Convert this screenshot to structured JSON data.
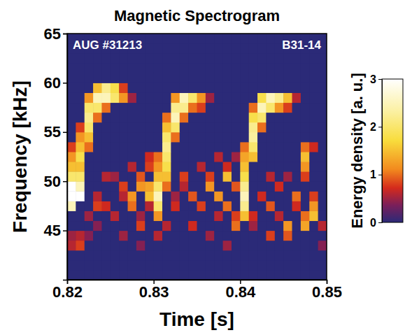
{
  "chart_data": {
    "type": "heatmap",
    "title": "Magnetic Spectrogram",
    "x_label": "Time [s]",
    "y_label": "Frequency [kHz]",
    "annotations": [
      "AUG #31213",
      "B31-14"
    ],
    "xlim": [
      0.82,
      0.85
    ],
    "ylim": [
      40,
      65
    ],
    "xticks": [
      0.82,
      0.83,
      0.84,
      0.85
    ],
    "yticks": [
      45,
      50,
      55,
      60,
      65
    ],
    "colorbar_label": "Energy density [a. u.]",
    "colorbar_range": [
      0,
      3
    ],
    "colorbar_ticks": [
      0,
      1,
      2,
      3
    ],
    "x": [
      0.8205,
      0.8215,
      0.8225,
      0.8235,
      0.8245,
      0.8255,
      0.8265,
      0.8275,
      0.8285,
      0.8295,
      0.8305,
      0.8315,
      0.8325,
      0.8335,
      0.8345,
      0.8355,
      0.8365,
      0.8375,
      0.8385,
      0.8395,
      0.8405,
      0.8415,
      0.8425,
      0.8435,
      0.8445,
      0.8455,
      0.8465,
      0.8475,
      0.8485,
      0.8495
    ],
    "y": [
      40.5,
      41.5,
      42.5,
      43.5,
      44.5,
      45.5,
      46.5,
      47.5,
      48.5,
      49.5,
      50.5,
      51.5,
      52.5,
      53.5,
      54.5,
      55.5,
      56.5,
      57.5,
      58.5,
      59.5,
      60.5,
      61.5,
      62.5,
      63.5,
      64.5
    ],
    "z": [
      [
        0,
        0,
        0,
        0,
        0,
        0,
        0,
        0,
        0,
        0,
        0,
        0,
        0,
        0,
        0,
        0,
        0,
        0,
        0,
        0,
        0,
        0,
        0,
        0,
        0,
        0,
        0,
        0,
        0,
        0
      ],
      [
        0,
        0,
        0,
        0,
        0,
        0,
        0,
        0,
        0,
        0,
        0,
        0,
        0,
        0,
        0,
        0,
        0,
        0,
        0,
        0,
        0,
        0,
        0,
        0,
        0,
        0,
        0,
        0,
        0,
        0
      ],
      [
        0,
        0,
        0,
        0,
        0,
        0,
        0,
        0,
        0,
        0,
        0,
        0,
        0,
        0,
        0,
        0,
        0,
        0,
        0,
        0,
        0,
        0,
        0,
        0,
        0,
        0,
        0,
        0,
        0,
        0
      ],
      [
        0.6,
        0.8,
        0,
        0,
        0,
        0,
        0,
        0,
        0.4,
        0,
        0,
        0,
        0,
        0,
        0,
        0,
        0,
        0,
        0.5,
        0,
        0,
        0,
        0,
        0,
        0,
        0,
        0,
        0,
        0,
        0.4
      ],
      [
        0.5,
        0.6,
        0.4,
        0,
        0,
        0,
        0.5,
        0,
        0,
        0,
        0.6,
        0,
        0,
        0,
        0,
        0,
        0.5,
        0,
        0,
        0,
        0,
        0,
        0,
        0.8,
        0,
        0.9,
        0,
        0,
        0,
        0
      ],
      [
        0,
        0,
        0,
        0.4,
        0,
        0,
        0,
        0,
        0.8,
        0,
        0,
        0.6,
        0,
        0,
        0.7,
        0,
        0,
        0,
        0,
        1,
        0,
        0.5,
        0,
        0,
        0,
        1.2,
        0,
        1.3,
        0,
        0.6
      ],
      [
        0,
        0,
        0.5,
        0,
        0,
        0.6,
        0,
        0,
        0.5,
        0,
        1.2,
        0,
        0,
        0,
        0,
        0,
        0,
        0.6,
        0,
        0.8,
        1.5,
        0.7,
        0,
        0,
        0.6,
        0,
        0,
        1,
        1.5,
        0
      ],
      [
        2.5,
        0,
        0,
        0.8,
        0.7,
        0,
        0,
        1,
        0,
        0.6,
        2,
        0,
        0.7,
        0,
        0,
        0.8,
        0,
        0,
        1,
        0,
        2.2,
        0,
        0,
        0.9,
        0,
        0,
        0.7,
        0,
        1.2,
        0
      ],
      [
        3,
        3,
        0,
        0.6,
        0,
        0,
        0.6,
        1.2,
        0,
        1.5,
        2.5,
        0,
        0.5,
        0,
        0.9,
        0,
        0,
        1.2,
        0,
        0,
        2.5,
        0,
        0.7,
        0,
        0,
        0,
        1,
        0,
        0.8,
        0
      ],
      [
        3,
        2.5,
        0,
        0,
        0,
        0,
        0.8,
        0,
        1.2,
        1.3,
        2,
        1,
        0,
        0.6,
        0,
        0,
        1.2,
        0,
        0,
        0.9,
        2.2,
        0,
        0,
        0,
        0.7,
        0,
        0,
        0,
        0,
        0
      ],
      [
        2,
        2,
        0,
        0,
        0.6,
        0.5,
        0,
        0,
        0.9,
        0,
        1.5,
        1.5,
        0,
        0.8,
        0,
        0,
        0.8,
        0,
        1.5,
        0,
        1.8,
        0,
        0,
        0.6,
        0,
        0.5,
        0,
        0.8,
        0,
        0
      ],
      [
        1.5,
        1.5,
        0,
        0,
        0,
        0,
        0,
        0.6,
        0,
        0.8,
        1.2,
        1.8,
        0,
        0,
        0,
        0.6,
        0,
        0,
        0.7,
        0,
        1.5,
        0,
        0,
        0,
        0,
        0,
        0,
        1.2,
        0,
        0
      ],
      [
        1.2,
        1.8,
        0,
        0,
        0,
        0,
        0,
        0,
        0,
        0.7,
        1,
        2,
        0,
        0,
        0,
        0,
        0,
        0.6,
        0,
        0.5,
        1.3,
        1.5,
        0,
        0,
        0,
        0,
        0,
        1.5,
        0,
        0
      ],
      [
        0.8,
        1.5,
        1,
        0,
        0,
        0,
        0,
        0,
        0,
        0,
        0,
        2.2,
        0,
        0,
        0,
        0,
        0,
        0,
        0,
        0,
        1,
        2,
        0,
        0,
        0,
        0,
        0,
        1,
        0.7,
        0
      ],
      [
        0,
        1.2,
        1.5,
        0,
        0,
        0,
        0,
        0,
        0,
        0,
        0,
        2,
        1,
        0,
        0,
        0,
        0,
        0,
        0,
        0,
        0,
        2.3,
        0,
        0,
        0,
        0,
        0,
        0,
        0,
        0
      ],
      [
        0,
        0.8,
        2,
        0,
        0,
        0,
        0,
        0,
        0,
        0,
        0,
        1.5,
        2,
        0,
        0,
        0,
        0,
        0,
        0,
        0,
        0,
        2.2,
        1,
        0,
        0,
        0,
        0,
        0,
        0,
        0
      ],
      [
        0,
        0,
        2.2,
        1,
        0,
        0,
        0,
        0,
        0,
        0,
        0,
        1,
        2.5,
        1,
        0,
        0,
        0,
        0,
        0,
        0,
        0,
        1.8,
        2,
        0,
        0,
        0,
        0,
        0,
        0,
        0
      ],
      [
        0,
        0,
        2,
        2,
        1,
        0,
        0,
        0,
        0,
        0,
        0,
        0,
        2.2,
        2.2,
        1,
        0.8,
        0,
        0,
        0,
        0,
        0,
        1,
        2.5,
        2,
        1.2,
        0.8,
        0,
        0,
        0,
        0
      ],
      [
        0,
        0,
        1.2,
        2.5,
        2.5,
        2,
        1.2,
        0.5,
        0,
        0,
        0,
        0,
        1.2,
        2.5,
        2,
        1.2,
        0.5,
        0,
        0,
        0,
        0,
        0,
        1.8,
        2.5,
        2.2,
        1.5,
        0.6,
        0,
        0,
        0
      ],
      [
        0,
        0,
        0,
        1.5,
        2.2,
        1.8,
        0.8,
        0,
        0,
        0,
        0,
        0,
        0,
        0,
        0,
        0,
        0,
        0,
        0,
        0,
        0,
        0,
        0,
        0,
        0,
        0,
        0,
        0,
        0,
        0
      ],
      [
        0,
        0,
        0,
        0,
        0,
        0,
        0,
        0,
        0,
        0,
        0,
        0,
        0,
        0,
        0,
        0,
        0,
        0,
        0,
        0,
        0,
        0,
        0,
        0,
        0,
        0,
        0,
        0,
        0,
        0
      ],
      [
        0,
        0,
        0,
        0,
        0,
        0,
        0,
        0,
        0,
        0,
        0,
        0,
        0,
        0,
        0,
        0,
        0,
        0,
        0,
        0,
        0,
        0,
        0,
        0,
        0,
        0,
        0,
        0,
        0,
        0
      ],
      [
        0,
        0,
        0,
        0,
        0,
        0,
        0,
        0,
        0,
        0,
        0,
        0,
        0,
        0,
        0,
        0,
        0,
        0,
        0,
        0,
        0,
        0,
        0,
        0,
        0,
        0,
        0,
        0,
        0,
        0
      ],
      [
        0,
        0,
        0,
        0,
        0,
        0,
        0,
        0,
        0,
        0,
        0,
        0,
        0,
        0,
        0,
        0,
        0,
        0,
        0,
        0,
        0,
        0,
        0,
        0,
        0,
        0,
        0,
        0,
        0,
        0
      ],
      [
        0,
        0,
        0,
        0,
        0,
        0,
        0,
        0,
        0,
        0,
        0,
        0,
        0,
        0,
        0,
        0,
        0,
        0,
        0,
        0,
        0,
        0,
        0,
        0,
        0,
        0,
        0,
        0,
        0,
        0
      ]
    ]
  }
}
